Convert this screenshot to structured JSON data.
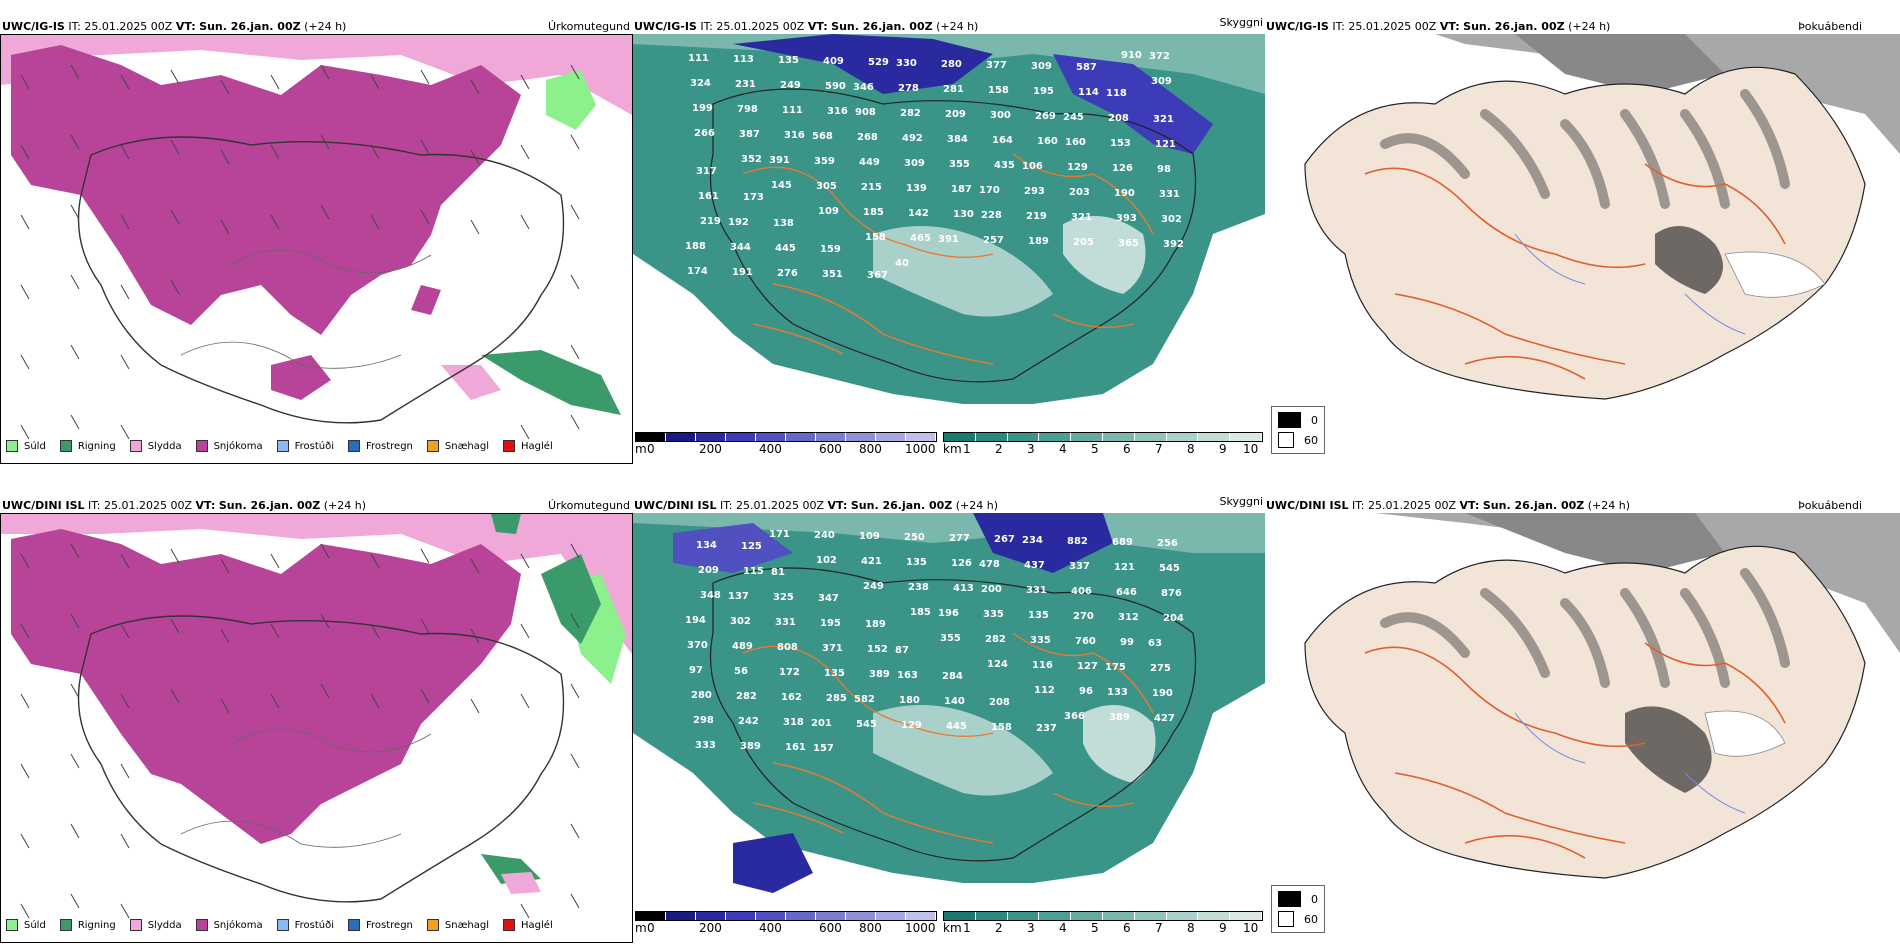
{
  "rows": [
    {
      "model": "UWC/IG-IS",
      "it_label": "IT:",
      "it_value": "25.01.2025 00Z",
      "vt_label": "VT:",
      "vt_value": "Sun. 26.jan. 00Z",
      "lead": "(+24 h)",
      "titles": [
        "Úrkomutegund",
        "Skyggni",
        "Þokuábendi"
      ],
      "cloud_labels": [
        {
          "t": "111"
        },
        {
          "t": "113"
        },
        {
          "t": "135"
        },
        {
          "t": "409"
        },
        {
          "t": "529"
        },
        {
          "t": "330"
        },
        {
          "t": "280"
        },
        {
          "t": "377"
        },
        {
          "t": "309"
        },
        {
          "t": "587"
        },
        {
          "t": "910"
        },
        {
          "t": "372"
        },
        {
          "t": "324"
        },
        {
          "t": "231"
        },
        {
          "t": "249"
        },
        {
          "t": "590"
        },
        {
          "t": "346"
        },
        {
          "t": "278"
        },
        {
          "t": "281"
        },
        {
          "t": "158"
        },
        {
          "t": "195"
        },
        {
          "t": "114"
        },
        {
          "t": "118"
        },
        {
          "t": "309"
        },
        {
          "t": "199"
        },
        {
          "t": "798"
        },
        {
          "t": "111"
        },
        {
          "t": "316"
        },
        {
          "t": "908"
        },
        {
          "t": "282"
        },
        {
          "t": "209"
        },
        {
          "t": "300"
        },
        {
          "t": "269"
        },
        {
          "t": "245"
        },
        {
          "t": "208"
        },
        {
          "t": "321"
        },
        {
          "t": "266"
        },
        {
          "t": "387"
        },
        {
          "t": "316"
        },
        {
          "t": "568"
        },
        {
          "t": "268"
        },
        {
          "t": "492"
        },
        {
          "t": "384"
        },
        {
          "t": "164"
        },
        {
          "t": "160"
        },
        {
          "t": "160"
        },
        {
          "t": "153"
        },
        {
          "t": "121"
        },
        {
          "t": "317"
        },
        {
          "t": "352"
        },
        {
          "t": "391"
        },
        {
          "t": "359"
        },
        {
          "t": "449"
        },
        {
          "t": "309"
        },
        {
          "t": "355"
        },
        {
          "t": "435"
        },
        {
          "t": "106"
        },
        {
          "t": "129"
        },
        {
          "t": "126"
        },
        {
          "t": "98"
        },
        {
          "t": "161"
        },
        {
          "t": "173"
        },
        {
          "t": "145"
        },
        {
          "t": "305"
        },
        {
          "t": "215"
        },
        {
          "t": "139"
        },
        {
          "t": "187"
        },
        {
          "t": "170"
        },
        {
          "t": "293"
        },
        {
          "t": "203"
        },
        {
          "t": "190"
        },
        {
          "t": "331"
        },
        {
          "t": "219"
        },
        {
          "t": "192"
        },
        {
          "t": "138"
        },
        {
          "t": "109"
        },
        {
          "t": "185"
        },
        {
          "t": "142"
        },
        {
          "t": "130"
        },
        {
          "t": "228"
        },
        {
          "t": "219"
        },
        {
          "t": "321"
        },
        {
          "t": "393"
        },
        {
          "t": "302"
        },
        {
          "t": "188"
        },
        {
          "t": "344"
        },
        {
          "t": "445"
        },
        {
          "t": "159"
        },
        {
          "t": "158"
        },
        {
          "t": "465"
        },
        {
          "t": "391"
        },
        {
          "t": "257"
        },
        {
          "t": "189"
        },
        {
          "t": "205"
        },
        {
          "t": "365"
        },
        {
          "t": "392"
        },
        {
          "t": "174"
        },
        {
          "t": "191"
        },
        {
          "t": "276"
        },
        {
          "t": "351"
        },
        {
          "t": "367"
        },
        {
          "t": "40"
        }
      ]
    },
    {
      "model": "UWC/DINI ISL",
      "it_label": "IT:",
      "it_value": "25.01.2025 00Z",
      "vt_label": "VT:",
      "vt_value": "Sun. 26.jan. 00Z",
      "lead": "(+24 h)",
      "titles": [
        "Úrkomutegund",
        "Skyggni",
        "Þokuábendi"
      ],
      "cloud_labels": [
        {
          "t": "134"
        },
        {
          "t": "125"
        },
        {
          "t": "171"
        },
        {
          "t": "240"
        },
        {
          "t": "109"
        },
        {
          "t": "250"
        },
        {
          "t": "277"
        },
        {
          "t": "267"
        },
        {
          "t": "234"
        },
        {
          "t": "882"
        },
        {
          "t": "689"
        },
        {
          "t": "256"
        },
        {
          "t": "209"
        },
        {
          "t": "115"
        },
        {
          "t": "81"
        },
        {
          "t": "102"
        },
        {
          "t": "421"
        },
        {
          "t": "135"
        },
        {
          "t": "126"
        },
        {
          "t": "478"
        },
        {
          "t": "437"
        },
        {
          "t": "337"
        },
        {
          "t": "121"
        },
        {
          "t": "545"
        },
        {
          "t": "348"
        },
        {
          "t": "137"
        },
        {
          "t": "325"
        },
        {
          "t": "347"
        },
        {
          "t": "249"
        },
        {
          "t": "238"
        },
        {
          "t": "413"
        },
        {
          "t": "200"
        },
        {
          "t": "331"
        },
        {
          "t": "406"
        },
        {
          "t": "646"
        },
        {
          "t": "876"
        },
        {
          "t": "194"
        },
        {
          "t": "302"
        },
        {
          "t": "331"
        },
        {
          "t": "195"
        },
        {
          "t": "189"
        },
        {
          "t": "185"
        },
        {
          "t": "196"
        },
        {
          "t": "335"
        },
        {
          "t": "135"
        },
        {
          "t": "270"
        },
        {
          "t": "312"
        },
        {
          "t": "204"
        },
        {
          "t": "370"
        },
        {
          "t": "489"
        },
        {
          "t": "808"
        },
        {
          "t": "371"
        },
        {
          "t": "152"
        },
        {
          "t": "87"
        },
        {
          "t": "355"
        },
        {
          "t": "282"
        },
        {
          "t": "335"
        },
        {
          "t": "760"
        },
        {
          "t": "99"
        },
        {
          "t": "63"
        },
        {
          "t": "97"
        },
        {
          "t": "56"
        },
        {
          "t": "172"
        },
        {
          "t": "135"
        },
        {
          "t": "389"
        },
        {
          "t": "163"
        },
        {
          "t": "284"
        },
        {
          "t": "124"
        },
        {
          "t": "116"
        },
        {
          "t": "127"
        },
        {
          "t": "175"
        },
        {
          "t": "275"
        },
        {
          "t": "280"
        },
        {
          "t": "282"
        },
        {
          "t": "162"
        },
        {
          "t": "285"
        },
        {
          "t": "582"
        },
        {
          "t": "180"
        },
        {
          "t": "140"
        },
        {
          "t": "208"
        },
        {
          "t": "112"
        },
        {
          "t": "96"
        },
        {
          "t": "133"
        },
        {
          "t": "190"
        },
        {
          "t": "298"
        },
        {
          "t": "242"
        },
        {
          "t": "318"
        },
        {
          "t": "201"
        },
        {
          "t": "545"
        },
        {
          "t": "129"
        },
        {
          "t": "445"
        },
        {
          "t": "158"
        },
        {
          "t": "237"
        },
        {
          "t": "366"
        },
        {
          "t": "389"
        },
        {
          "t": "427"
        },
        {
          "t": "333"
        },
        {
          "t": "389"
        },
        {
          "t": "161"
        },
        {
          "t": "157"
        }
      ]
    }
  ],
  "precip_legend": [
    {
      "label": "Súld",
      "color": "#8cf08c"
    },
    {
      "label": "Rigning",
      "color": "#3a9a6a"
    },
    {
      "label": "Slydda",
      "color": "#f0a8d8"
    },
    {
      "label": "Snjókoma",
      "color": "#b8449a"
    },
    {
      "label": "Frostúði",
      "color": "#8ab8f0"
    },
    {
      "label": "Frostregn",
      "color": "#2a6cc0"
    },
    {
      "label": "Snæhagl",
      "color": "#f0a020"
    },
    {
      "label": "Haglél",
      "color": "#e01010"
    }
  ],
  "cloudbase_scale": {
    "unit": "m",
    "ticks": [
      "0",
      "200",
      "400",
      "600",
      "800",
      "1000"
    ],
    "colors": [
      "#000000",
      "#1a1a80",
      "#2a2aa0",
      "#3c3cb8",
      "#5050c0",
      "#6868c8",
      "#7c7cd0",
      "#9090d8",
      "#a8a8e0",
      "#c0c0e8"
    ]
  },
  "vis_scale": {
    "unit": "km",
    "ticks": [
      "1",
      "2",
      "3",
      "4",
      "5",
      "6",
      "7",
      "8",
      "9",
      "10"
    ],
    "colors": [
      "#1a7a70",
      "#2a8a80",
      "#3a9488",
      "#4aa094",
      "#62aca0",
      "#7ab8ae",
      "#92c4bc",
      "#aad0ca",
      "#c2dcd8",
      "#dae8e6"
    ]
  },
  "fog_legend": [
    {
      "label": "0",
      "color": "#000000"
    },
    {
      "label": "60",
      "color": "#ffffff"
    }
  ]
}
